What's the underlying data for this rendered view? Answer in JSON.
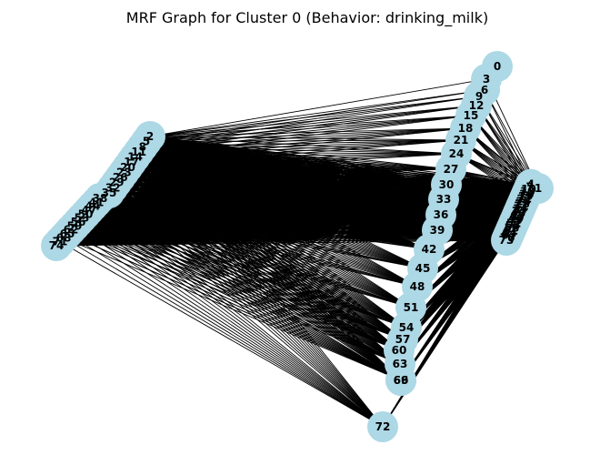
{
  "title": "MRF Graph for Cluster 0 (Behavior: drinking_milk)",
  "colors": {
    "node_fill": "#add8e6",
    "edge": "#000000",
    "label": "#000000",
    "background": "#ffffff"
  },
  "graph": {
    "nodes": [
      "0",
      "1",
      "2",
      "3",
      "4",
      "5",
      "6",
      "7",
      "8",
      "9",
      "10",
      "11",
      "12",
      "13",
      "14",
      "15",
      "16",
      "17",
      "18",
      "19",
      "20",
      "21",
      "22",
      "23",
      "24",
      "25",
      "26",
      "27",
      "28",
      "29",
      "30",
      "31",
      "32",
      "33",
      "34",
      "35",
      "36",
      "37",
      "38",
      "39",
      "40",
      "41",
      "42",
      "43",
      "44",
      "45",
      "46",
      "47",
      "48",
      "49",
      "50",
      "51",
      "52",
      "53",
      "54",
      "55",
      "56",
      "57",
      "58",
      "59",
      "60",
      "61",
      "62",
      "63",
      "64",
      "65",
      "66",
      "67",
      "68",
      "69",
      "70",
      "71",
      "72",
      "73",
      "74"
    ],
    "groups": {
      "left": [
        "2",
        "5",
        "8",
        "11",
        "14",
        "17",
        "20",
        "23",
        "26",
        "29",
        "32",
        "35",
        "38",
        "41",
        "44",
        "47",
        "50",
        "53",
        "56",
        "59",
        "62",
        "65",
        "68",
        "71",
        "74"
      ],
      "center": [
        "0",
        "3",
        "6",
        "9",
        "12",
        "15",
        "18",
        "21",
        "24",
        "27",
        "30",
        "33",
        "36",
        "39",
        "42",
        "45",
        "48",
        "51",
        "54",
        "57",
        "60",
        "63",
        "66",
        "69"
      ],
      "right": [
        "1",
        "4",
        "7",
        "10",
        "13",
        "16",
        "19",
        "22",
        "25",
        "28",
        "31",
        "34",
        "37",
        "40",
        "43",
        "46",
        "49",
        "52",
        "55",
        "58",
        "61",
        "64",
        "67",
        "70",
        "73"
      ],
      "bottom": [
        "72"
      ]
    }
  }
}
